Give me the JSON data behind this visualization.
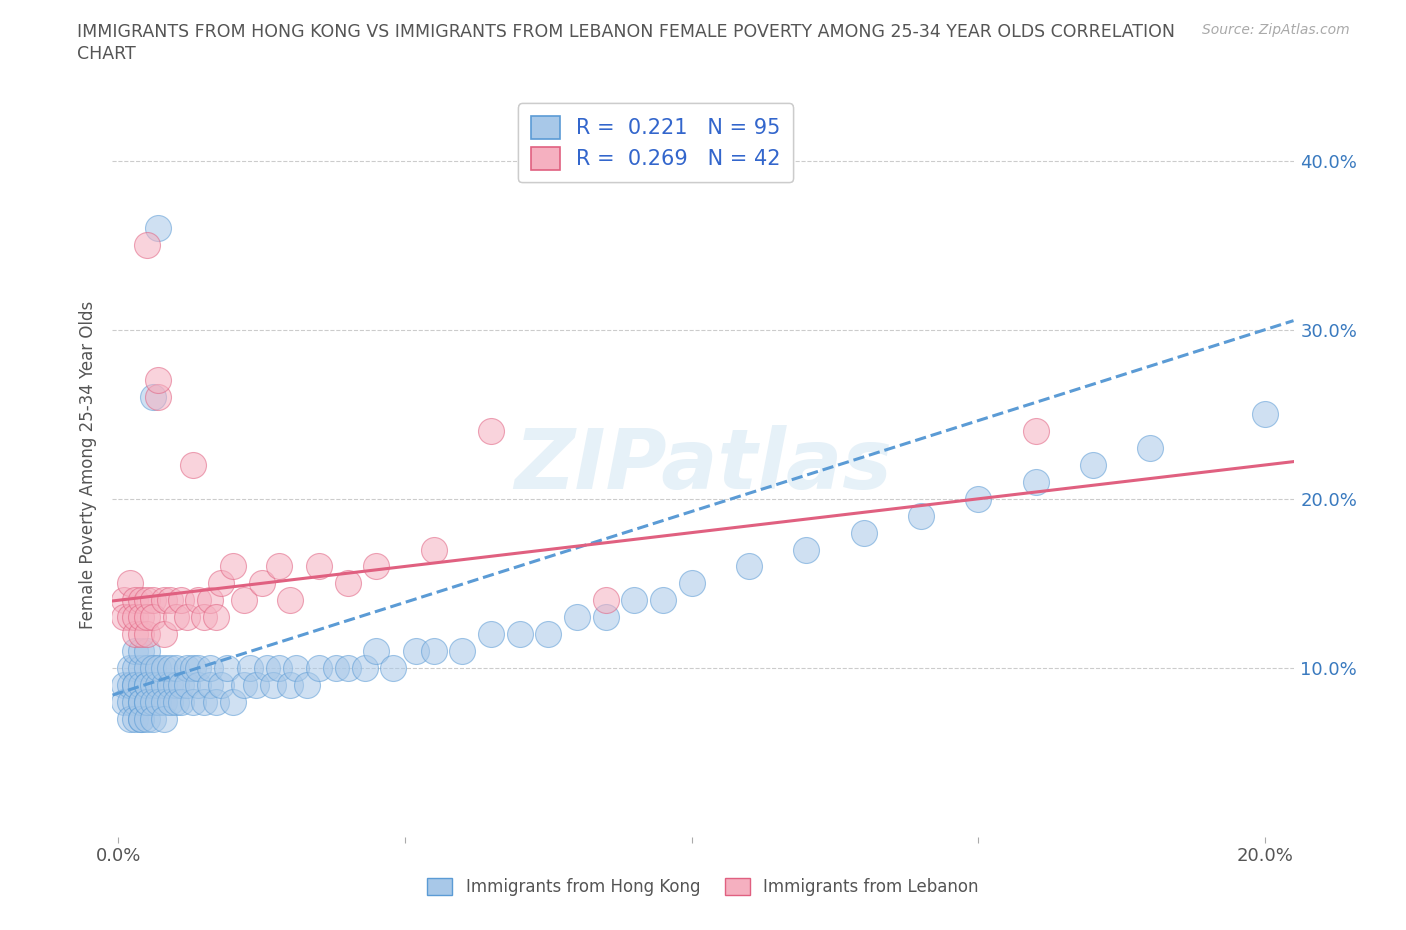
{
  "title_line1": "IMMIGRANTS FROM HONG KONG VS IMMIGRANTS FROM LEBANON FEMALE POVERTY AMONG 25-34 YEAR OLDS CORRELATION",
  "title_line2": "CHART",
  "source": "Source: ZipAtlas.com",
  "ylabel": "Female Poverty Among 25-34 Year Olds",
  "xlim": [
    -0.001,
    0.205
  ],
  "ylim": [
    0.0,
    0.44
  ],
  "xticks": [
    0.0,
    0.05,
    0.1,
    0.15,
    0.2
  ],
  "xticklabels": [
    "0.0%",
    "",
    "",
    "",
    "20.0%"
  ],
  "yticks_right": [
    0.1,
    0.2,
    0.3,
    0.4
  ],
  "yticklabels_right": [
    "10.0%",
    "20.0%",
    "30.0%",
    "40.0%"
  ],
  "hk_color": "#a8c8e8",
  "lb_color": "#f5b0c0",
  "hk_edge_color": "#5b9bd5",
  "lb_edge_color": "#e06080",
  "hk_line_color": "#5b9bd5",
  "lb_line_color": "#e06080",
  "legend_text_color": "#3366cc",
  "hk_R": 0.221,
  "hk_N": 95,
  "lb_R": 0.269,
  "lb_N": 42,
  "watermark": "ZIPatlas",
  "hk_x": [
    0.001,
    0.001,
    0.002,
    0.002,
    0.002,
    0.002,
    0.003,
    0.003,
    0.003,
    0.003,
    0.003,
    0.003,
    0.004,
    0.004,
    0.004,
    0.004,
    0.004,
    0.004,
    0.004,
    0.005,
    0.005,
    0.005,
    0.005,
    0.005,
    0.005,
    0.005,
    0.006,
    0.006,
    0.006,
    0.006,
    0.006,
    0.007,
    0.007,
    0.007,
    0.007,
    0.008,
    0.008,
    0.008,
    0.008,
    0.009,
    0.009,
    0.009,
    0.01,
    0.01,
    0.01,
    0.011,
    0.011,
    0.012,
    0.012,
    0.013,
    0.013,
    0.014,
    0.014,
    0.015,
    0.016,
    0.016,
    0.017,
    0.018,
    0.019,
    0.02,
    0.022,
    0.023,
    0.024,
    0.026,
    0.027,
    0.028,
    0.03,
    0.031,
    0.033,
    0.035,
    0.038,
    0.04,
    0.043,
    0.045,
    0.048,
    0.052,
    0.055,
    0.06,
    0.065,
    0.07,
    0.075,
    0.08,
    0.085,
    0.09,
    0.095,
    0.1,
    0.11,
    0.12,
    0.13,
    0.14,
    0.15,
    0.16,
    0.17,
    0.18,
    0.2
  ],
  "hk_y": [
    0.09,
    0.08,
    0.1,
    0.08,
    0.09,
    0.07,
    0.1,
    0.09,
    0.08,
    0.07,
    0.11,
    0.09,
    0.08,
    0.1,
    0.07,
    0.09,
    0.08,
    0.11,
    0.07,
    0.1,
    0.09,
    0.08,
    0.11,
    0.07,
    0.09,
    0.08,
    0.1,
    0.09,
    0.08,
    0.07,
    0.26,
    0.09,
    0.08,
    0.1,
    0.36,
    0.09,
    0.08,
    0.1,
    0.07,
    0.09,
    0.08,
    0.1,
    0.09,
    0.08,
    0.1,
    0.09,
    0.08,
    0.1,
    0.09,
    0.1,
    0.08,
    0.09,
    0.1,
    0.08,
    0.09,
    0.1,
    0.08,
    0.09,
    0.1,
    0.08,
    0.09,
    0.1,
    0.09,
    0.1,
    0.09,
    0.1,
    0.09,
    0.1,
    0.09,
    0.1,
    0.1,
    0.1,
    0.1,
    0.11,
    0.1,
    0.11,
    0.11,
    0.11,
    0.12,
    0.12,
    0.12,
    0.13,
    0.13,
    0.14,
    0.14,
    0.15,
    0.16,
    0.17,
    0.18,
    0.19,
    0.2,
    0.21,
    0.22,
    0.23,
    0.25
  ],
  "lb_x": [
    0.001,
    0.001,
    0.002,
    0.002,
    0.003,
    0.003,
    0.003,
    0.004,
    0.004,
    0.004,
    0.005,
    0.005,
    0.005,
    0.005,
    0.006,
    0.006,
    0.007,
    0.007,
    0.008,
    0.008,
    0.009,
    0.01,
    0.011,
    0.012,
    0.013,
    0.014,
    0.015,
    0.016,
    0.017,
    0.018,
    0.02,
    0.022,
    0.025,
    0.028,
    0.03,
    0.035,
    0.04,
    0.045,
    0.055,
    0.065,
    0.085,
    0.16
  ],
  "lb_y": [
    0.14,
    0.13,
    0.15,
    0.13,
    0.14,
    0.12,
    0.13,
    0.14,
    0.12,
    0.13,
    0.14,
    0.12,
    0.13,
    0.35,
    0.14,
    0.13,
    0.26,
    0.27,
    0.14,
    0.12,
    0.14,
    0.13,
    0.14,
    0.13,
    0.22,
    0.14,
    0.13,
    0.14,
    0.13,
    0.15,
    0.16,
    0.14,
    0.15,
    0.16,
    0.14,
    0.16,
    0.15,
    0.16,
    0.17,
    0.24,
    0.14,
    0.24
  ]
}
